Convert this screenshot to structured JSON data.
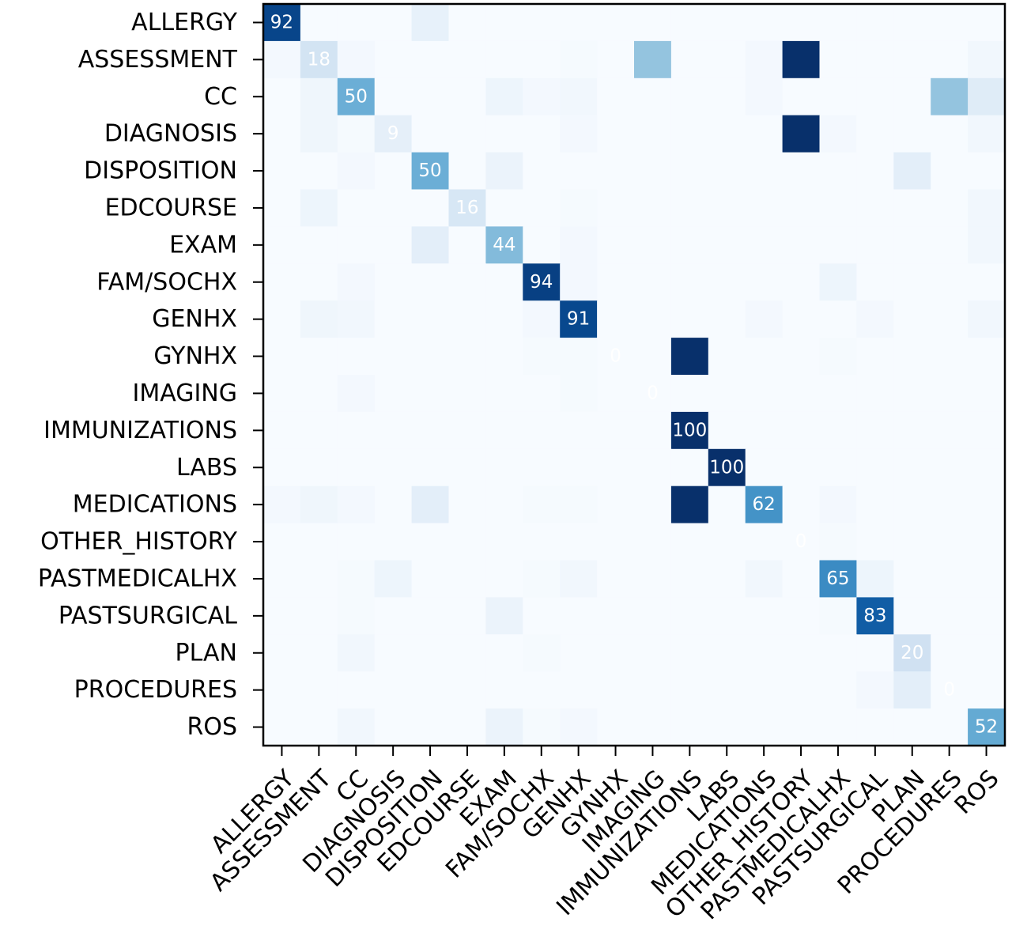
{
  "chart_data": {
    "type": "heatmap",
    "title": "",
    "xlabel": "",
    "ylabel": "",
    "colormap": "Blues",
    "value_range": [
      0,
      100
    ],
    "labels": [
      "ALLERGY",
      "ASSESSMENT",
      "CC",
      "DIAGNOSIS",
      "DISPOSITION",
      "EDCOURSE",
      "EXAM",
      "FAM/SOCHX",
      "GENHX",
      "GYNHX",
      "IMAGING",
      "IMMUNIZATIONS",
      "LABS",
      "MEDICATIONS",
      "OTHER_HISTORY",
      "PASTMEDICALHX",
      "PASTSURGICAL",
      "PLAN",
      "PROCEDURES",
      "ROS"
    ],
    "matrix": [
      [
        92,
        0,
        0,
        0,
        8,
        0,
        0,
        0,
        0,
        0,
        0,
        0,
        0,
        0,
        0,
        0,
        0,
        0,
        0,
        0
      ],
      [
        2,
        18,
        2,
        0,
        0,
        0,
        0,
        0,
        1,
        0,
        40,
        0,
        0,
        2,
        100,
        0,
        0,
        0,
        0,
        3
      ],
      [
        0,
        4,
        50,
        0,
        0,
        0,
        5,
        2,
        3,
        0,
        0,
        0,
        0,
        2,
        0,
        0,
        0,
        0,
        40,
        12
      ],
      [
        0,
        4,
        1,
        9,
        0,
        0,
        0,
        0,
        2,
        0,
        0,
        0,
        0,
        0,
        100,
        2,
        0,
        0,
        0,
        3
      ],
      [
        0,
        0,
        2,
        0,
        50,
        0,
        6,
        0,
        0,
        0,
        0,
        0,
        0,
        0,
        0,
        0,
        0,
        10,
        0,
        0
      ],
      [
        0,
        5,
        0,
        0,
        0,
        16,
        0,
        0,
        1,
        0,
        0,
        0,
        0,
        0,
        0,
        0,
        0,
        0,
        0,
        3
      ],
      [
        0,
        0,
        0,
        0,
        10,
        0,
        44,
        0,
        2,
        0,
        0,
        0,
        0,
        0,
        0,
        0,
        0,
        0,
        0,
        3
      ],
      [
        0,
        0,
        2,
        0,
        0,
        0,
        0,
        94,
        2,
        0,
        0,
        0,
        0,
        0,
        0,
        5,
        0,
        0,
        0,
        0
      ],
      [
        0,
        4,
        3,
        0,
        0,
        0,
        0,
        2,
        91,
        0,
        0,
        0,
        0,
        2,
        0,
        0,
        2,
        0,
        0,
        3
      ],
      [
        0,
        0,
        0,
        0,
        0,
        0,
        0,
        1,
        1,
        0,
        0,
        100,
        0,
        0,
        0,
        1,
        0,
        0,
        0,
        0
      ],
      [
        0,
        0,
        2,
        0,
        0,
        0,
        0,
        0,
        1,
        0,
        0,
        0,
        0,
        0,
        0,
        0,
        0,
        0,
        0,
        0
      ],
      [
        0,
        0,
        0,
        0,
        0,
        0,
        0,
        0,
        0,
        0,
        0,
        100,
        0,
        0,
        0,
        0,
        0,
        0,
        0,
        0
      ],
      [
        0,
        0,
        0,
        0,
        0,
        0,
        0,
        0,
        0,
        0,
        0,
        0,
        100,
        0,
        0,
        0,
        0,
        0,
        0,
        0
      ],
      [
        2,
        4,
        2,
        0,
        10,
        0,
        0,
        1,
        1,
        0,
        0,
        100,
        0,
        62,
        0,
        2,
        0,
        0,
        0,
        0
      ],
      [
        0,
        0,
        0,
        0,
        0,
        0,
        0,
        0,
        0,
        0,
        0,
        0,
        0,
        0,
        0,
        1,
        0,
        0,
        0,
        0
      ],
      [
        0,
        0,
        1,
        5,
        0,
        0,
        0,
        1,
        3,
        0,
        0,
        0,
        0,
        3,
        0,
        65,
        5,
        0,
        0,
        0
      ],
      [
        0,
        0,
        1,
        0,
        0,
        0,
        6,
        0,
        0,
        0,
        0,
        0,
        0,
        0,
        0,
        1,
        83,
        0,
        0,
        0
      ],
      [
        0,
        0,
        3,
        0,
        0,
        0,
        0,
        1,
        0,
        0,
        0,
        0,
        0,
        0,
        0,
        0,
        0,
        20,
        0,
        0
      ],
      [
        0,
        0,
        0,
        0,
        0,
        0,
        0,
        0,
        0,
        0,
        0,
        0,
        0,
        0,
        0,
        0,
        2,
        10,
        0,
        0
      ],
      [
        0,
        0,
        3,
        0,
        0,
        0,
        6,
        1,
        2,
        0,
        0,
        0,
        0,
        0,
        0,
        0,
        0,
        0,
        0,
        52
      ]
    ],
    "annotated_diagonal": [
      92,
      18,
      50,
      9,
      50,
      16,
      44,
      94,
      91,
      0,
      0,
      100,
      100,
      62,
      0,
      65,
      83,
      20,
      0,
      52
    ]
  }
}
